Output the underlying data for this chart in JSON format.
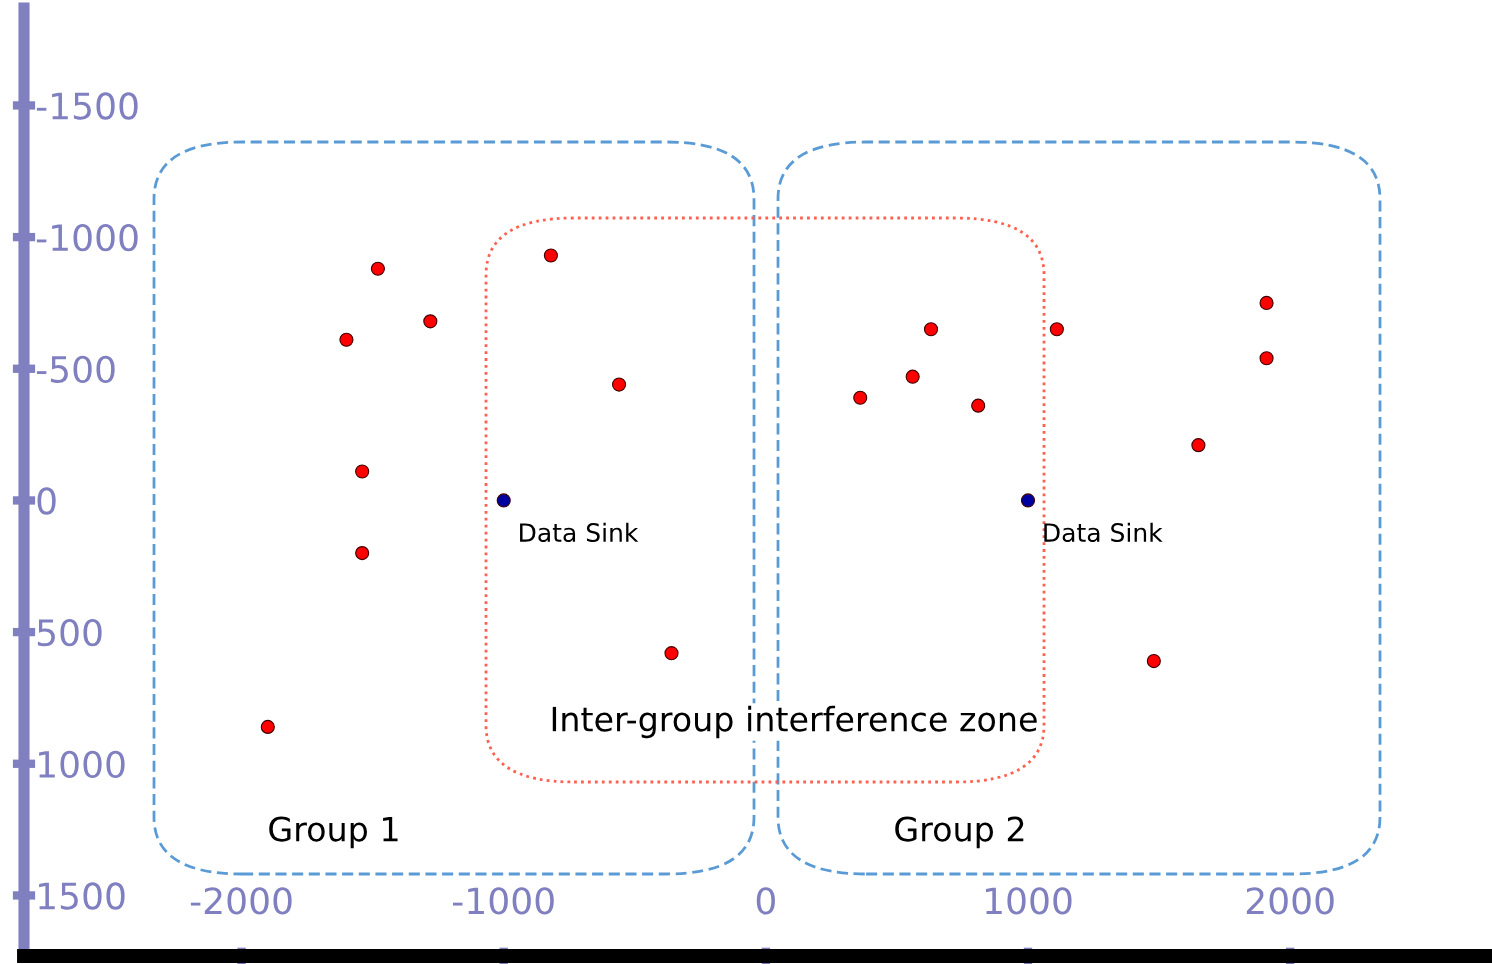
{
  "chart_data": {
    "type": "scatter",
    "xlim": [
      -2830,
      2770
    ],
    "ylim": [
      1730,
      -1870
    ],
    "xticks": [
      -2000,
      -1000,
      0,
      1000,
      2000
    ],
    "yticks": [
      -1500,
      -1000,
      -500,
      0,
      500,
      1000,
      1500
    ],
    "grid": false,
    "legend": false,
    "marker": "circle",
    "series": [
      {
        "color": "#ff0000",
        "x": [
          -1480,
          -1280,
          -1600,
          -820,
          -560,
          -1540,
          -1540,
          -1900,
          -360,
          360,
          560,
          630,
          810,
          1110,
          1910,
          1910,
          1650,
          1480
        ],
        "values": [
          -880,
          -680,
          -610,
          -930,
          -440,
          -110,
          200,
          860,
          580,
          -390,
          -470,
          -650,
          -360,
          -650,
          -750,
          -540,
          -210,
          610
        ]
      },
      {
        "color": "#0000a0",
        "x": [
          -1000,
          1000
        ],
        "values": [
          0,
          0
        ]
      }
    ],
    "annotations": [
      {
        "text": "Data Sink",
        "x": -1000,
        "y": 0
      },
      {
        "text": "Data Sink",
        "x": 1000,
        "y": 0
      },
      "Inter-group interference zone",
      "Group 1",
      "Group 2"
    ]
  }
}
